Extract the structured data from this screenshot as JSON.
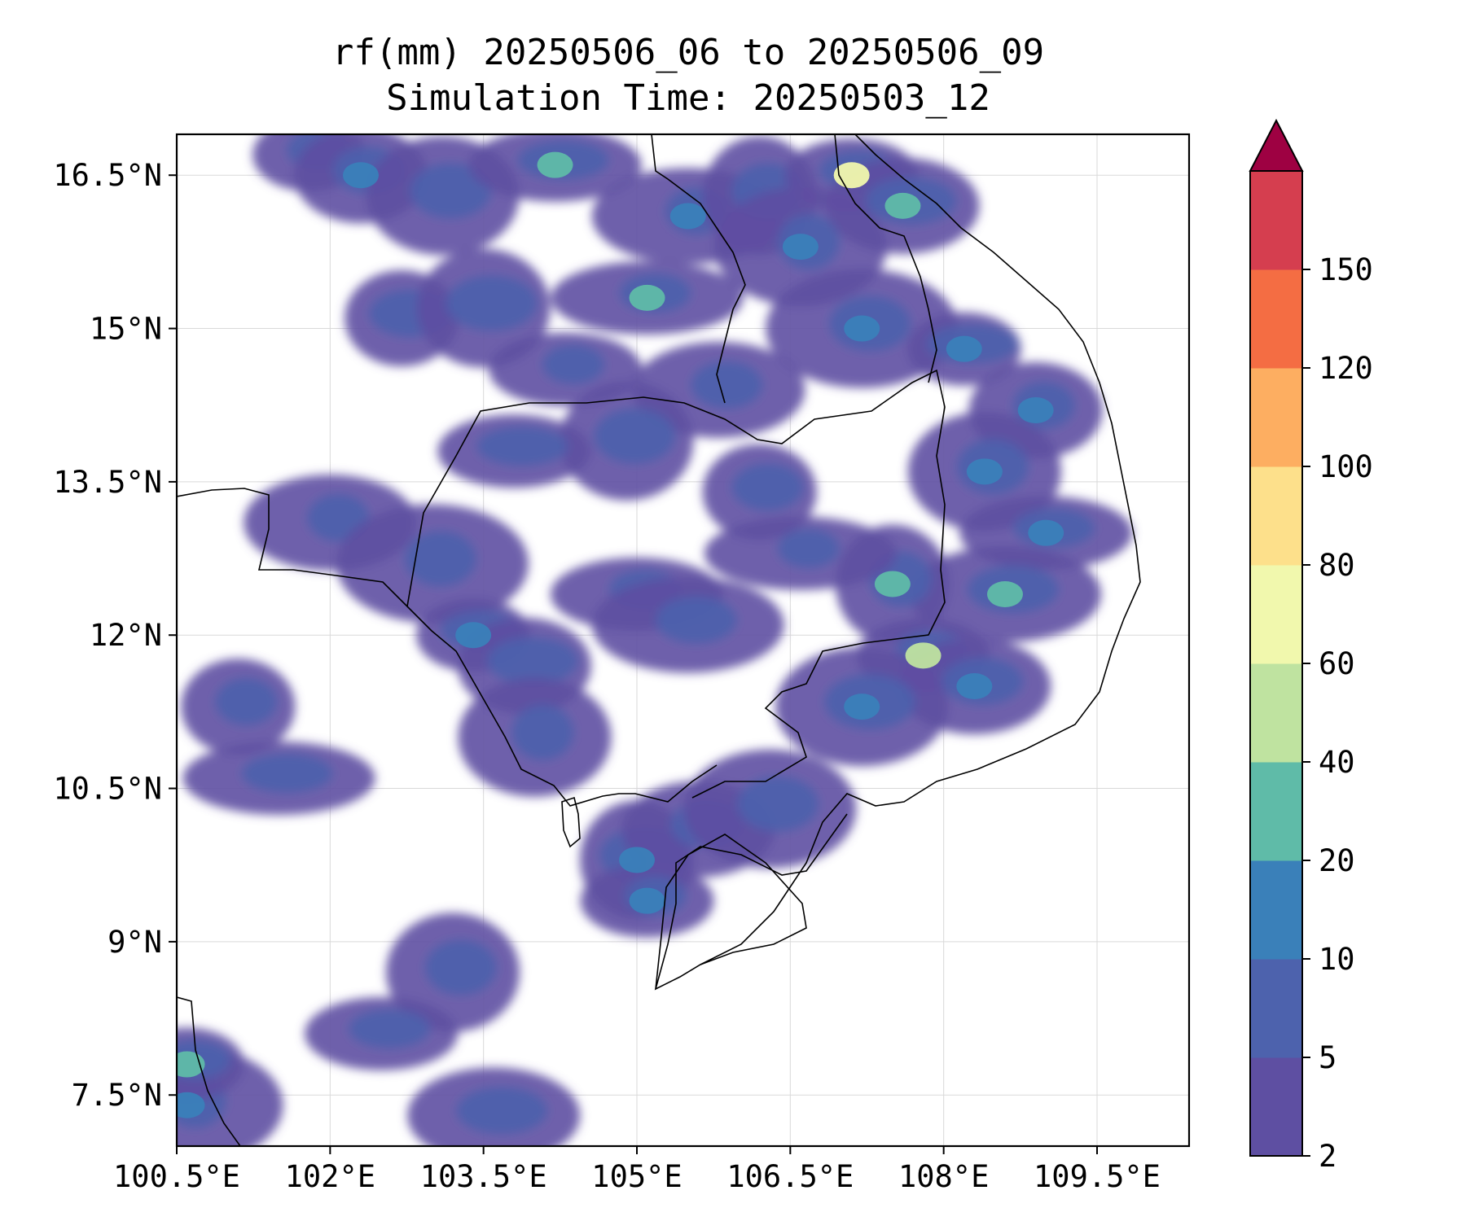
{
  "title": {
    "line1": "rf(mm) 20250506_06 to 20250506_09",
    "line2": "Simulation Time: 20250503_12"
  },
  "map": {
    "lon_range": [
      100.5,
      110.4
    ],
    "lat_range": [
      7.0,
      16.9
    ],
    "lon_ticks": [
      100.5,
      102,
      103.5,
      105,
      106.5,
      108,
      109.5
    ],
    "lon_tick_labels": [
      "100.5°E",
      "102°E",
      "103.5°E",
      "105°E",
      "106.5°E",
      "108°E",
      "109.5°E"
    ],
    "lat_ticks": [
      16.5,
      15,
      13.5,
      12,
      10.5,
      9,
      7.5
    ],
    "lat_tick_labels": [
      "16.5°N",
      "15°N",
      "13.5°N",
      "12°N",
      "10.5°N",
      "9°N",
      "7.5°N"
    ],
    "gridlines": true,
    "coastline_color": "#000000"
  },
  "colorbar": {
    "levels": [
      "2",
      "5",
      "10",
      "20",
      "40",
      "60",
      "80",
      "100",
      "120",
      "150"
    ],
    "colors": [
      "#5e4fa2",
      "#4d62ad",
      "#3a80b9",
      "#5fbba8",
      "#bfe3a0",
      "#f1f8ad",
      "#fde08b",
      "#fdae61",
      "#f46d43",
      "#d53e4f"
    ],
    "extend_color": "#9e0142",
    "extend": "max"
  },
  "rain_cells": [
    {
      "lon": 101.8,
      "lat": 16.7,
      "v": 5
    },
    {
      "lon": 102.3,
      "lat": 16.5,
      "v": 10
    },
    {
      "lon": 103.1,
      "lat": 16.3,
      "v": 5
    },
    {
      "lon": 104.2,
      "lat": 16.6,
      "v": 20
    },
    {
      "lon": 105.5,
      "lat": 16.1,
      "v": 10
    },
    {
      "lon": 106.2,
      "lat": 16.3,
      "v": 5
    },
    {
      "lon": 107.1,
      "lat": 16.5,
      "v": 60
    },
    {
      "lon": 107.6,
      "lat": 16.2,
      "v": 20
    },
    {
      "lon": 106.6,
      "lat": 15.8,
      "v": 10
    },
    {
      "lon": 105.1,
      "lat": 15.3,
      "v": 20
    },
    {
      "lon": 102.7,
      "lat": 15.1,
      "v": 5
    },
    {
      "lon": 103.5,
      "lat": 15.2,
      "v": 5
    },
    {
      "lon": 104.3,
      "lat": 14.6,
      "v": 5
    },
    {
      "lon": 105.8,
      "lat": 14.4,
      "v": 5
    },
    {
      "lon": 107.2,
      "lat": 15.0,
      "v": 10
    },
    {
      "lon": 108.2,
      "lat": 14.8,
      "v": 10
    },
    {
      "lon": 108.9,
      "lat": 14.2,
      "v": 10
    },
    {
      "lon": 108.4,
      "lat": 13.6,
      "v": 10
    },
    {
      "lon": 109.0,
      "lat": 13.0,
      "v": 10
    },
    {
      "lon": 108.6,
      "lat": 12.4,
      "v": 20
    },
    {
      "lon": 107.5,
      "lat": 12.5,
      "v": 20
    },
    {
      "lon": 107.8,
      "lat": 11.8,
      "v": 40
    },
    {
      "lon": 108.3,
      "lat": 11.5,
      "v": 10
    },
    {
      "lon": 107.2,
      "lat": 11.3,
      "v": 10
    },
    {
      "lon": 106.6,
      "lat": 12.8,
      "v": 5
    },
    {
      "lon": 106.2,
      "lat": 13.4,
      "v": 5
    },
    {
      "lon": 104.9,
      "lat": 13.9,
      "v": 5
    },
    {
      "lon": 103.8,
      "lat": 13.8,
      "v": 5
    },
    {
      "lon": 102.0,
      "lat": 13.1,
      "v": 5
    },
    {
      "lon": 103.0,
      "lat": 12.7,
      "v": 5
    },
    {
      "lon": 103.4,
      "lat": 12.0,
      "v": 10
    },
    {
      "lon": 103.9,
      "lat": 11.7,
      "v": 5
    },
    {
      "lon": 104.0,
      "lat": 11.0,
      "v": 5
    },
    {
      "lon": 105.0,
      "lat": 12.4,
      "v": 5
    },
    {
      "lon": 105.5,
      "lat": 12.1,
      "v": 5
    },
    {
      "lon": 105.0,
      "lat": 9.8,
      "v": 10
    },
    {
      "lon": 105.1,
      "lat": 9.4,
      "v": 10
    },
    {
      "lon": 105.6,
      "lat": 10.1,
      "v": 5
    },
    {
      "lon": 106.3,
      "lat": 10.3,
      "v": 5
    },
    {
      "lon": 101.5,
      "lat": 10.6,
      "v": 5
    },
    {
      "lon": 101.1,
      "lat": 11.3,
      "v": 5
    },
    {
      "lon": 103.2,
      "lat": 8.7,
      "v": 5
    },
    {
      "lon": 102.5,
      "lat": 8.1,
      "v": 5
    },
    {
      "lon": 103.6,
      "lat": 7.3,
      "v": 5
    },
    {
      "lon": 100.6,
      "lat": 7.4,
      "v": 10
    },
    {
      "lon": 100.6,
      "lat": 7.8,
      "v": 20
    }
  ]
}
